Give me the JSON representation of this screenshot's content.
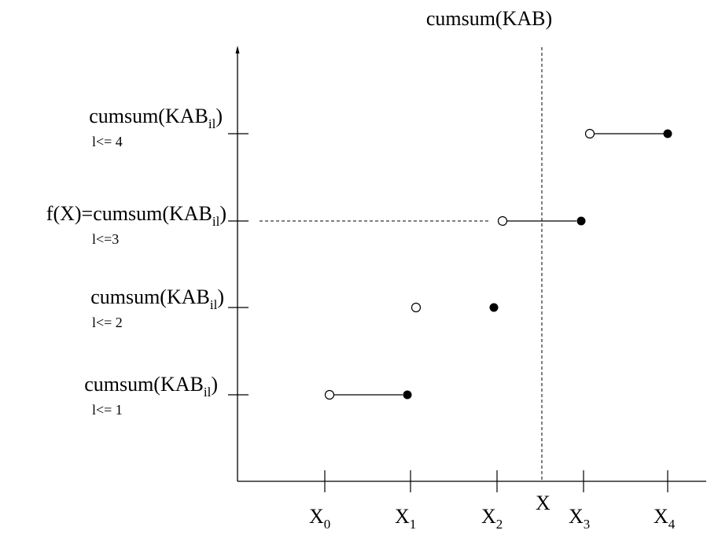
{
  "title": "cumsum(KAB)",
  "y_labels": [
    {
      "main": "cumsum(KAB",
      "sub": "il",
      "close": ")",
      "cond": "l<= 4"
    },
    {
      "main": "f(X)=cumsum(KAB",
      "sub": "il",
      "close": ")",
      "cond": "l<=3"
    },
    {
      "main": "cumsum(KAB",
      "sub": "il",
      "close": ")",
      "cond": "l<= 2"
    },
    {
      "main": "cumsum(KAB",
      "sub": "il",
      "close": ")",
      "cond": "l<= 1"
    }
  ],
  "x_labels": [
    {
      "main": "X",
      "sub": "0"
    },
    {
      "main": "X",
      "sub": "1"
    },
    {
      "main": "X",
      "sub": "2"
    },
    {
      "main": "X",
      "sub": "3"
    },
    {
      "main": "X",
      "sub": "4"
    }
  ],
  "x_marker_label": "X",
  "step_segments": [
    {
      "level": 1,
      "from": "X0",
      "to": "X1",
      "drawn": true
    },
    {
      "level": 2,
      "from": "X1",
      "to": "X2",
      "drawn": false
    },
    {
      "level": 3,
      "from": "X2",
      "to": "X3",
      "drawn": true
    },
    {
      "level": 4,
      "from": "X3",
      "to": "X4",
      "drawn": true
    }
  ],
  "colors": {
    "ink": "#000000",
    "background": "#ffffff"
  }
}
